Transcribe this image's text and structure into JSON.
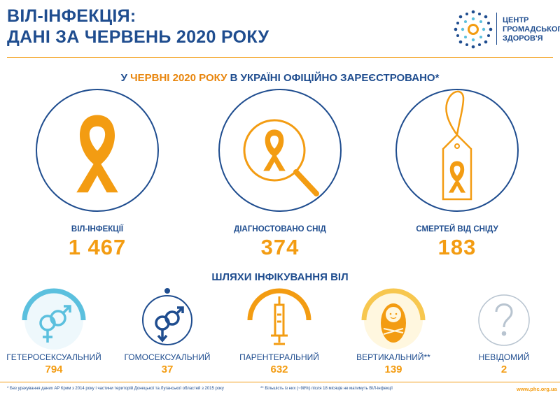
{
  "header": {
    "title_line1": "ВІЛ-ІНФЕКЦІЯ:",
    "title_line2": "ДАНІ ЗА ЧЕРВЕНЬ 2020 РОКУ",
    "logo_line1": "ЦЕНТР",
    "logo_line2": "ГРОМАДСЬКОГО",
    "logo_line3": "ЗДОРОВ'Я"
  },
  "headline": {
    "prefix": "У ",
    "highlight": "ЧЕРВНІ 2020 РОКУ",
    "suffix": " В УКРАЇНІ ОФІЦІЙНО ЗАРЕЄСТРОВАНО*"
  },
  "stats": [
    {
      "label": "ВІЛ-ІНФЕКЦІЇ",
      "value": "1 467",
      "icon": "ribbon-icon"
    },
    {
      "label": "ДІАГНОСТОВАНО СНІД",
      "value": "374",
      "icon": "magnifier-ribbon-icon"
    },
    {
      "label": "СМЕРТЕЙ ВІД СНІДУ",
      "value": "183",
      "icon": "tag-ribbon-icon"
    }
  ],
  "routes_title": "ШЛЯХИ ІНФІКУВАННЯ ВІЛ",
  "routes": [
    {
      "label": "ГЕТЕРОСЕКСУАЛЬНИЙ",
      "value": "794",
      "icon": "heterosexual-icon",
      "color": "#5bc0de"
    },
    {
      "label": "ГОМОСЕКСУАЛЬНИЙ",
      "value": "37",
      "icon": "homosexual-icon",
      "color": "#1f4d8f"
    },
    {
      "label": "ПАРЕНТЕРАЛЬНИЙ",
      "value": "632",
      "icon": "syringe-icon",
      "color": "#f39c12"
    },
    {
      "label": "ВЕРТИКАЛЬНИЙ**",
      "value": "139",
      "icon": "baby-icon",
      "color": "#f7c74f"
    },
    {
      "label": "НЕВІДОМИЙ",
      "value": "2",
      "icon": "question-icon",
      "color": "#b8c4d0"
    }
  ],
  "footer": {
    "note1": "* Без урахування даних АР Крим з 2014 року і частини територій Донецької та Луганської областей з 2015 року",
    "note2": "** Більшість із них (~98%) після 18 місяців не матимуть ВІЛ-інфекції",
    "url": "www.phc.org.ua"
  },
  "colors": {
    "navy": "#1f4d8f",
    "orange": "#f39c12",
    "light_blue": "#5bc0de"
  }
}
